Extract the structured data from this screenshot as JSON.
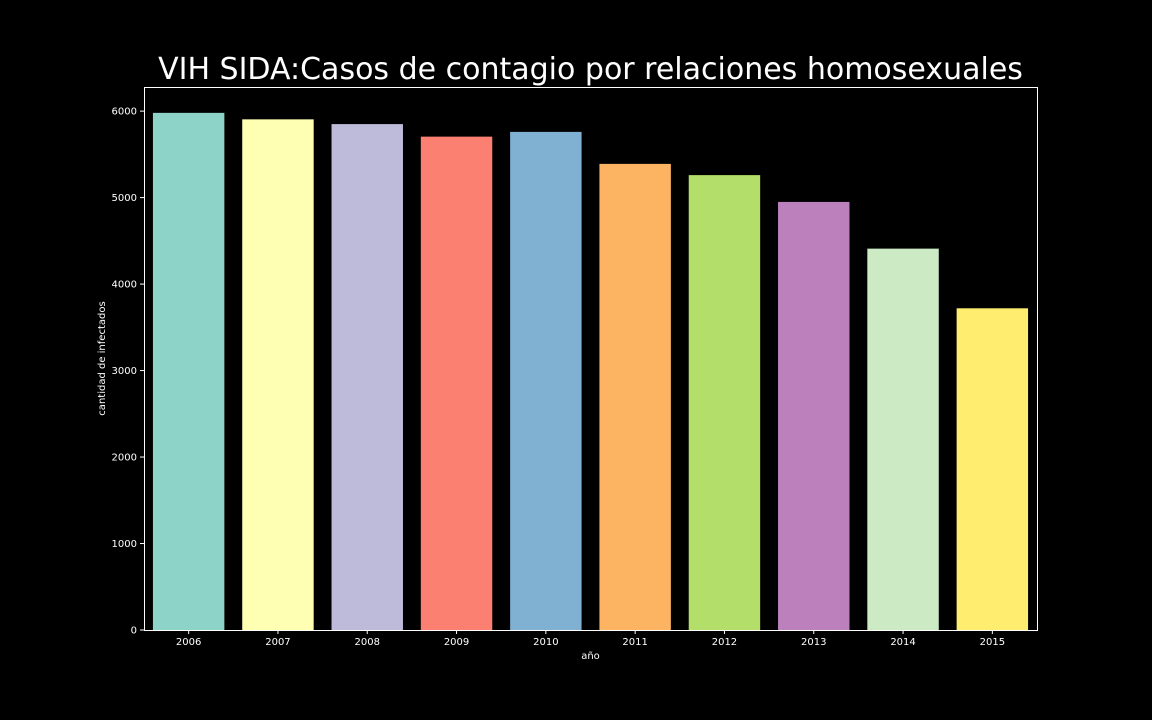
{
  "chart_data": {
    "type": "bar",
    "title": "VIH SIDA:Casos de contagio por relaciones homosexuales",
    "xlabel": "año",
    "ylabel": "cantidad de infectados",
    "categories": [
      "2006",
      "2007",
      "2008",
      "2009",
      "2010",
      "2011",
      "2012",
      "2013",
      "2014",
      "2015"
    ],
    "values": [
      5980,
      5905,
      5850,
      5705,
      5760,
      5390,
      5260,
      4950,
      4410,
      3720
    ],
    "colors": [
      "#8dd3c7",
      "#ffffb3",
      "#bebada",
      "#fb8072",
      "#80b1d3",
      "#fdb462",
      "#b3de69",
      "#bc80bd",
      "#ccebc5",
      "#ffed6f"
    ],
    "yticks": [
      0,
      1000,
      2000,
      3000,
      4000,
      5000,
      6000
    ],
    "ylim": [
      0,
      6279
    ],
    "grid": false,
    "background": "#000000",
    "axis_color": "#ffffff"
  }
}
